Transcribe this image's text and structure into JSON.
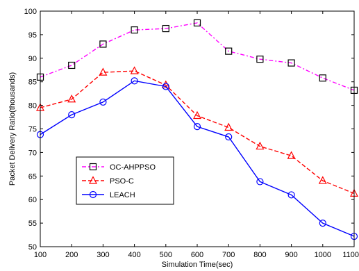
{
  "chart_data": {
    "type": "line",
    "xlabel": "Simulation Time(sec)",
    "ylabel": "Packet Delivery Ratio(thousands)",
    "x": [
      100,
      200,
      300,
      400,
      500,
      600,
      700,
      800,
      900,
      1000,
      1100
    ],
    "xlim": [
      100,
      1100
    ],
    "ylim": [
      50,
      100
    ],
    "xticks": [
      "100",
      "200",
      "300",
      "400",
      "500",
      "600",
      "700",
      "800",
      "900",
      "1000",
      "1100"
    ],
    "yticks": [
      "50",
      "55",
      "60",
      "65",
      "70",
      "75",
      "80",
      "85",
      "90",
      "95",
      "100"
    ],
    "grid": false,
    "legend_position": "lower-left",
    "series": [
      {
        "name": "OC-AHPPSO",
        "color": "#ff00ff",
        "line_style": "dashdot",
        "marker": "square",
        "values": [
          86,
          88.5,
          93,
          96,
          96.3,
          97.5,
          91.5,
          89.8,
          89,
          85.8,
          83.2
        ]
      },
      {
        "name": "PSO-C",
        "color": "#ff0000",
        "line_style": "dashed",
        "marker": "triangle",
        "values": [
          79.5,
          81.3,
          87,
          87.3,
          84.3,
          77.8,
          75.3,
          71.3,
          69.3,
          64,
          61.3
        ]
      },
      {
        "name": "LEACH",
        "color": "#0000ff",
        "line_style": "solid",
        "marker": "circle",
        "values": [
          73.8,
          78,
          80.7,
          85.2,
          84,
          75.5,
          73.3,
          63.8,
          61,
          55,
          52.2
        ]
      }
    ]
  }
}
